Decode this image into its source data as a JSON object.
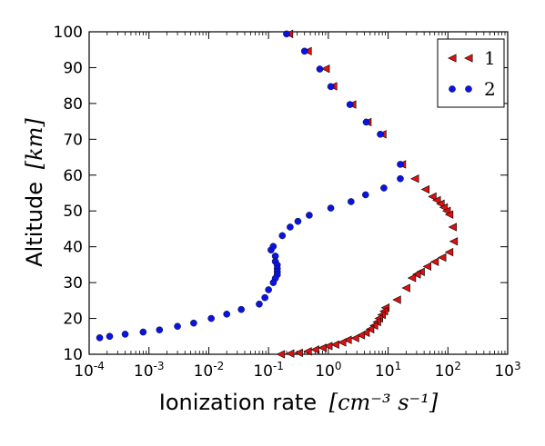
{
  "chart_data": {
    "type": "scatter",
    "xlabel": "Ionization rate",
    "xlabel_unit": "[cm⁻³ s⁻¹]",
    "ylabel": "Altitude",
    "ylabel_unit": "[km]",
    "x_scale": "log",
    "xlim": [
      0.0001,
      1000
    ],
    "ylim": [
      10,
      100
    ],
    "x_ticks": [
      {
        "value": 0.0001,
        "base": "10",
        "exp": "-4"
      },
      {
        "value": 0.001,
        "base": "10",
        "exp": "-3"
      },
      {
        "value": 0.01,
        "base": "10",
        "exp": "-2"
      },
      {
        "value": 0.1,
        "base": "10",
        "exp": "-1"
      },
      {
        "value": 1,
        "base": "10",
        "exp": "0"
      },
      {
        "value": 10,
        "base": "10",
        "exp": "1"
      },
      {
        "value": 100,
        "base": "10",
        "exp": "2"
      },
      {
        "value": 1000,
        "base": "10",
        "exp": "3"
      }
    ],
    "y_ticks": [
      10,
      20,
      30,
      40,
      50,
      60,
      70,
      80,
      90,
      100
    ],
    "grid": false,
    "legend_position": "top-right",
    "series": [
      {
        "name": "1",
        "marker": "triangle-left",
        "color": "#dd1111",
        "points": [
          [
            0.22,
            99.4
          ],
          [
            0.45,
            94.6
          ],
          [
            0.9,
            89.7
          ],
          [
            1.2,
            84.8
          ],
          [
            2.5,
            79.7
          ],
          [
            4.5,
            74.8
          ],
          [
            8.0,
            71.4
          ],
          [
            17,
            63.0
          ],
          [
            28,
            59.0
          ],
          [
            42,
            56.0
          ],
          [
            55,
            54.0
          ],
          [
            65,
            53.0
          ],
          [
            75,
            52.0
          ],
          [
            85,
            51.0
          ],
          [
            95,
            50.0
          ],
          [
            105,
            49.0
          ],
          [
            120,
            45.5
          ],
          [
            125,
            41.5
          ],
          [
            105,
            38.5
          ],
          [
            80,
            37.0
          ],
          [
            60,
            35.8
          ],
          [
            45,
            34.5
          ],
          [
            35,
            33.0
          ],
          [
            30,
            32.3
          ],
          [
            25,
            31.3
          ],
          [
            20,
            28.5
          ],
          [
            14,
            25.2
          ],
          [
            9.0,
            23.0
          ],
          [
            8.5,
            22.0
          ],
          [
            7.8,
            21.0
          ],
          [
            7.0,
            20.0
          ],
          [
            6.5,
            19.0
          ],
          [
            5.8,
            18.0
          ],
          [
            5.0,
            17.0
          ],
          [
            4.2,
            16.0
          ],
          [
            3.5,
            15.3
          ],
          [
            2.8,
            14.5
          ],
          [
            2.1,
            14.0
          ],
          [
            1.7,
            13.3
          ],
          [
            1.3,
            12.7
          ],
          [
            1.0,
            12.3
          ],
          [
            0.8,
            11.8
          ],
          [
            0.6,
            11.3
          ],
          [
            0.45,
            10.8
          ],
          [
            0.32,
            10.4
          ],
          [
            0.23,
            10.2
          ],
          [
            0.16,
            10.0
          ]
        ]
      },
      {
        "name": "2",
        "marker": "circle",
        "color": "#0a14e0",
        "points": [
          [
            0.2,
            99.4
          ],
          [
            0.4,
            94.6
          ],
          [
            0.72,
            89.6
          ],
          [
            1.1,
            84.7
          ],
          [
            2.3,
            79.7
          ],
          [
            4.3,
            74.8
          ],
          [
            7.4,
            71.4
          ],
          [
            16,
            63.0
          ],
          [
            16,
            59.0
          ],
          [
            8.5,
            56.4
          ],
          [
            4.2,
            54.5
          ],
          [
            2.4,
            52.6
          ],
          [
            1.1,
            50.8
          ],
          [
            0.48,
            48.8
          ],
          [
            0.31,
            47.1
          ],
          [
            0.23,
            45.5
          ],
          [
            0.17,
            43.1
          ],
          [
            0.11,
            39.1
          ],
          [
            0.12,
            40.1
          ],
          [
            0.13,
            37.4
          ],
          [
            0.13,
            35.9
          ],
          [
            0.14,
            34.9
          ],
          [
            0.14,
            33.9
          ],
          [
            0.14,
            33.0
          ],
          [
            0.14,
            32.2
          ],
          [
            0.13,
            31.2
          ],
          [
            0.12,
            30.0
          ],
          [
            0.1,
            28.0
          ],
          [
            0.087,
            25.8
          ],
          [
            0.07,
            24.0
          ],
          [
            0.035,
            22.5
          ],
          [
            0.02,
            21.2
          ],
          [
            0.011,
            20.0
          ],
          [
            0.0056,
            18.7
          ],
          [
            0.003,
            17.8
          ],
          [
            0.0015,
            16.8
          ],
          [
            0.0008,
            16.2
          ],
          [
            0.0004,
            15.6
          ],
          [
            0.00022,
            15.0
          ],
          [
            0.00015,
            14.6
          ]
        ]
      }
    ]
  }
}
